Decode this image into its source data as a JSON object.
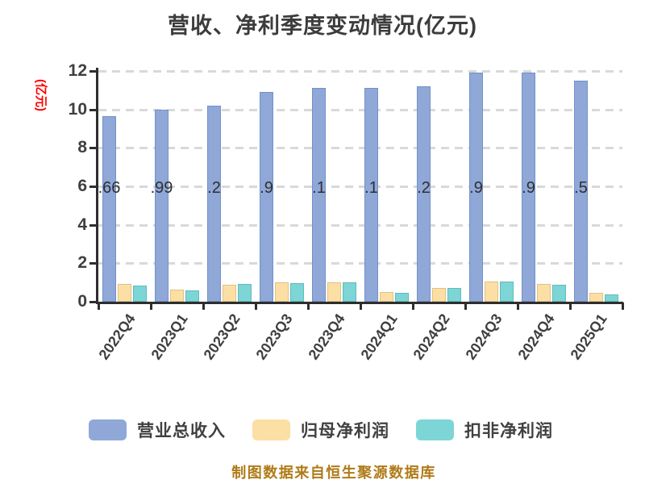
{
  "title": "营收、净利季度变动情况(亿元)",
  "y_axis": {
    "label": "(亿元)",
    "label_color": "#ff0000",
    "ticks": [
      0,
      2,
      4,
      6,
      8,
      10,
      12
    ],
    "max": 12
  },
  "footer": {
    "text": "制图数据来自恒生聚源数据库",
    "color": "#af7b18"
  },
  "legend": [
    {
      "label": "营业总收入",
      "color": "#8fa8d8"
    },
    {
      "label": "归母净利润",
      "color": "#fcdfa4"
    },
    {
      "label": "扣非净利润",
      "color": "#7dd5d5"
    }
  ],
  "chart_data": {
    "type": "bar",
    "title": "营收、净利季度变动情况(亿元)",
    "ylabel": "(亿元)",
    "ylim": [
      0,
      12
    ],
    "grid": "dashed-horizontal",
    "legend_position": "bottom",
    "categories": [
      "2022Q4",
      "2023Q1",
      "2023Q2",
      "2023Q3",
      "2023Q4",
      "2024Q1",
      "2024Q2",
      "2024Q3",
      "2024Q4",
      "2025Q1"
    ],
    "series": [
      {
        "id": "total-revenue",
        "name": "营业总收入",
        "color": "#8fa8d8",
        "border": "#7291c8",
        "values": [
          9.66,
          9.99,
          10.2,
          10.9,
          11.1,
          11.1,
          11.2,
          11.9,
          11.9,
          11.5
        ],
        "visible_bar_labels": [
          ".66",
          ".99",
          ".2",
          ".9",
          ".1",
          ".1",
          ".2",
          ".9",
          ".9",
          ".5"
        ]
      },
      {
        "id": "net-profit",
        "name": "归母净利润",
        "color": "#fcdfa4",
        "border": "#e3c183",
        "values": [
          0.92,
          0.63,
          0.9,
          1.0,
          1.02,
          0.5,
          0.72,
          1.05,
          0.92,
          0.47
        ]
      },
      {
        "id": "non-recurring-net-profit",
        "name": "扣非净利润",
        "color": "#7dd5d5",
        "border": "#5fbcbc",
        "values": [
          0.84,
          0.58,
          0.93,
          0.97,
          1.0,
          0.47,
          0.7,
          1.05,
          0.87,
          0.36
        ]
      }
    ]
  }
}
